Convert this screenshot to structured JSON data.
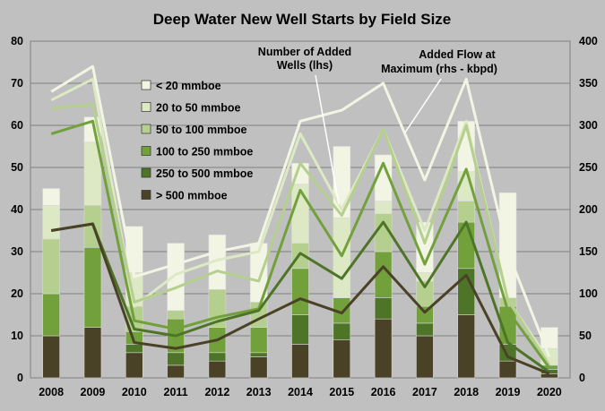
{
  "chart_data": {
    "type": "bar",
    "stacked": true,
    "title": "Deep Water New Well Starts by Field Size",
    "categories": [
      "2008",
      "2009",
      "2010",
      "2011",
      "2012",
      "2013",
      "2014",
      "2015",
      "2016",
      "2017",
      "2018",
      "2019",
      "2020"
    ],
    "ylim": [
      0,
      80
    ],
    "y2lim": [
      0,
      400
    ],
    "yticks": [
      "0",
      "10",
      "20",
      "30",
      "40",
      "50",
      "60",
      "70",
      "80"
    ],
    "y2ticks": [
      "0",
      "50",
      "100",
      "150",
      "200",
      "250",
      "300",
      "350",
      "400"
    ],
    "grid": true,
    "legend_placement": "top-left",
    "series": [
      {
        "name": "> 500 mmboe",
        "color": "#4a4226",
        "values": [
          10,
          12,
          6,
          3,
          4,
          5,
          8,
          9,
          14,
          10,
          15,
          4,
          1
        ]
      },
      {
        "name": "250 to 500 mmboe",
        "color": "#4e7427",
        "values": [
          0,
          0,
          2,
          3,
          2,
          1,
          7,
          4,
          5,
          3,
          11,
          4,
          1
        ]
      },
      {
        "name": "100 to 250 mmboe",
        "color": "#72a13c",
        "values": [
          10,
          19,
          3,
          8,
          6,
          6,
          11,
          6,
          11,
          4,
          11,
          9,
          1
        ]
      },
      {
        "name": "50 to 100 mmboe",
        "color": "#b5cf8e",
        "values": [
          13,
          10,
          6,
          2,
          9,
          6,
          6,
          0,
          9,
          6,
          5,
          2,
          0
        ]
      },
      {
        "name": "20 to 50 mmboe",
        "color": "#dde8c4",
        "values": [
          8,
          15,
          8,
          0,
          0,
          0,
          14,
          19,
          3,
          2,
          7,
          0,
          4
        ]
      },
      {
        "name": "< 20 mmboe",
        "color": "#f2f5e4",
        "values": [
          4,
          6,
          11,
          16,
          13,
          14,
          5,
          17,
          11,
          12,
          12,
          25,
          5
        ]
      }
    ],
    "flow_series": [
      {
        "name": "> 500 mmboe",
        "color": "#4a4226",
        "values": [
          175,
          183,
          42,
          35,
          45,
          70,
          94,
          77,
          132,
          78,
          122,
          25,
          5
        ]
      },
      {
        "name": "250 to 500 mmboe",
        "color": "#4e7427",
        "values": [
          175,
          183,
          58,
          50,
          67,
          80,
          148,
          118,
          185,
          108,
          185,
          42,
          7
        ]
      },
      {
        "name": "100 to 250 mmboe",
        "color": "#72a13c",
        "values": [
          290,
          305,
          68,
          58,
          72,
          82,
          223,
          145,
          255,
          135,
          248,
          80,
          12
        ]
      },
      {
        "name": "50 to 100 mmboe",
        "color": "#b5cf8e",
        "values": [
          320,
          325,
          90,
          107,
          127,
          115,
          255,
          193,
          295,
          160,
          300,
          93,
          15
        ]
      },
      {
        "name": "20 to 50 mmboe",
        "color": "#dde8c4",
        "values": [
          330,
          355,
          85,
          123,
          140,
          150,
          290,
          200,
          295,
          175,
          305,
          93,
          20
        ]
      },
      {
        "name": "< 20 mmboe",
        "color": "#f2f5e4",
        "values": [
          340,
          370,
          120,
          135,
          150,
          160,
          305,
          318,
          350,
          235,
          355,
          150,
          25
        ]
      }
    ],
    "annotations": [
      {
        "text": "Number of Added",
        "text2": "Wells (lhs)"
      },
      {
        "text": "Added Flow at",
        "text2": "Maximum (rhs - kbpd)"
      }
    ]
  }
}
